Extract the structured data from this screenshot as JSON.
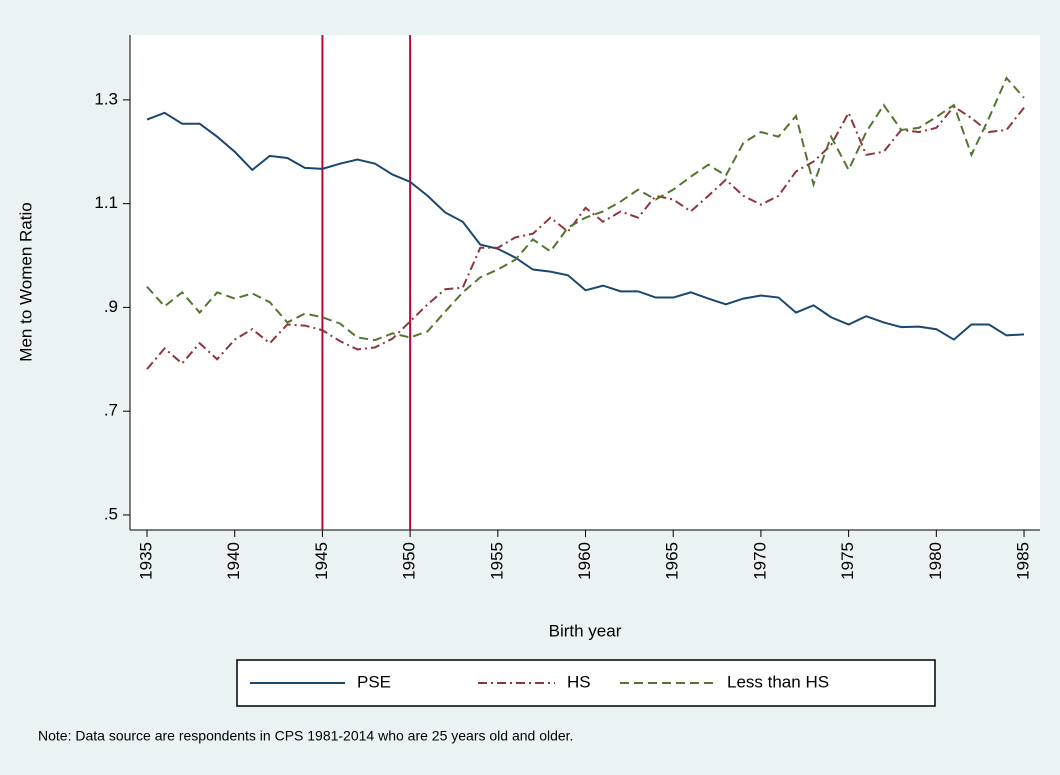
{
  "chart_data": {
    "type": "line",
    "y_label": "Men to Women Ratio",
    "x_label": "Birth year",
    "note": "Note: Data source are respondents in CPS 1981-2014 who are 25 years old and older.",
    "x": [
      1935,
      1936,
      1937,
      1938,
      1939,
      1940,
      1941,
      1942,
      1943,
      1944,
      1945,
      1946,
      1947,
      1948,
      1949,
      1950,
      1951,
      1952,
      1953,
      1954,
      1955,
      1956,
      1957,
      1958,
      1959,
      1960,
      1961,
      1962,
      1963,
      1964,
      1965,
      1966,
      1967,
      1968,
      1969,
      1970,
      1971,
      1972,
      1973,
      1974,
      1975,
      1976,
      1977,
      1978,
      1979,
      1980,
      1981,
      1982,
      1983,
      1984,
      1985
    ],
    "series": [
      {
        "name": "PSE",
        "color": "#1a476f",
        "dash": "solid",
        "values": [
          1.262,
          1.275,
          1.254,
          1.254,
          1.229,
          1.2,
          1.165,
          1.192,
          1.188,
          1.169,
          1.167,
          1.177,
          1.185,
          1.177,
          1.156,
          1.142,
          1.115,
          1.083,
          1.065,
          1.021,
          1.013,
          0.996,
          0.973,
          0.969,
          0.962,
          0.933,
          0.942,
          0.931,
          0.931,
          0.919,
          0.919,
          0.929,
          0.917,
          0.906,
          0.917,
          0.923,
          0.919,
          0.89,
          0.904,
          0.881,
          0.867,
          0.883,
          0.871,
          0.862,
          0.863,
          0.858,
          0.838,
          0.867,
          0.867,
          0.846,
          0.848
        ]
      },
      {
        "name": "HS",
        "color": "#90353b",
        "dash": "dash-dot",
        "values": [
          0.781,
          0.821,
          0.792,
          0.831,
          0.8,
          0.838,
          0.858,
          0.831,
          0.867,
          0.865,
          0.856,
          0.835,
          0.819,
          0.823,
          0.84,
          0.873,
          0.906,
          0.935,
          0.938,
          1.015,
          1.015,
          1.035,
          1.042,
          1.073,
          1.046,
          1.092,
          1.065,
          1.085,
          1.073,
          1.115,
          1.108,
          1.085,
          1.115,
          1.146,
          1.115,
          1.098,
          1.115,
          1.162,
          1.181,
          1.213,
          1.275,
          1.194,
          1.2,
          1.242,
          1.238,
          1.246,
          1.287,
          1.265,
          1.238,
          1.242,
          1.285
        ]
      },
      {
        "name": "Less than HS",
        "color": "#55752f",
        "dash": "dash",
        "values": [
          0.94,
          0.902,
          0.929,
          0.89,
          0.929,
          0.917,
          0.927,
          0.91,
          0.871,
          0.888,
          0.881,
          0.869,
          0.842,
          0.837,
          0.85,
          0.842,
          0.854,
          0.892,
          0.929,
          0.958,
          0.973,
          0.992,
          1.031,
          1.008,
          1.054,
          1.073,
          1.085,
          1.104,
          1.127,
          1.108,
          1.127,
          1.152,
          1.175,
          1.154,
          1.217,
          1.238,
          1.229,
          1.269,
          1.137,
          1.229,
          1.165,
          1.238,
          1.29,
          1.242,
          1.246,
          1.267,
          1.29,
          1.194,
          1.265,
          1.342,
          1.304
        ]
      }
    ],
    "xlines": [
      1945,
      1950
    ],
    "xline_color": "#c10534",
    "xlim": [
      1934.03,
      1985.91
    ],
    "ylim": [
      0.471,
      1.425
    ],
    "xticks": [
      1935,
      1940,
      1945,
      1950,
      1955,
      1960,
      1965,
      1970,
      1975,
      1980,
      1985
    ],
    "yticks": [
      {
        "value": 0.5,
        "label": ".5"
      },
      {
        "value": 0.7,
        "label": ".7"
      },
      {
        "value": 0.9,
        "label": ".9"
      },
      1.1,
      1.3
    ],
    "grid": false,
    "legend": "bottom"
  }
}
